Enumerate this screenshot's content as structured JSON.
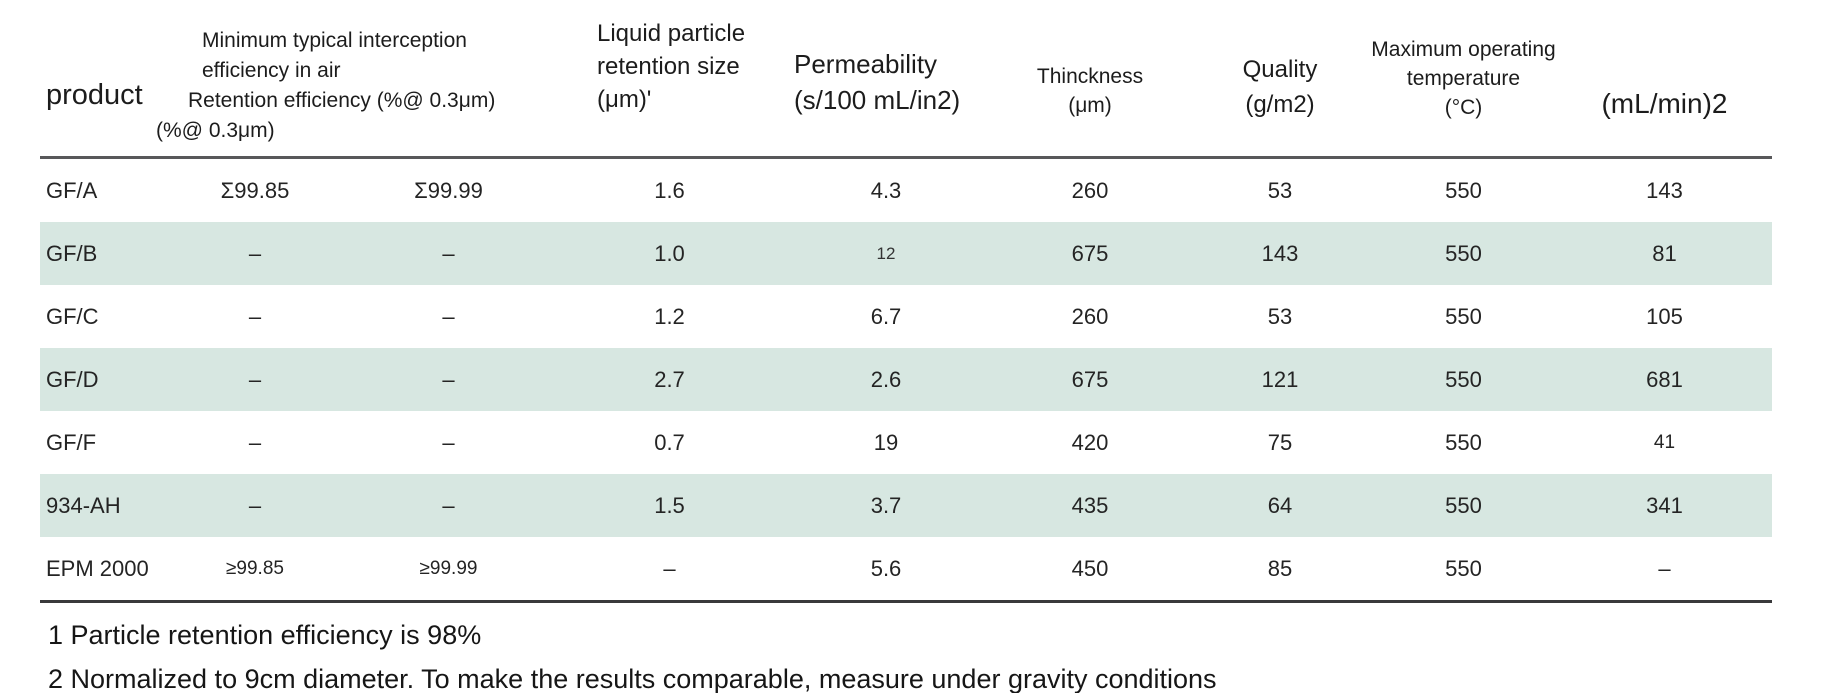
{
  "header": {
    "product": "product",
    "air_lines": [
      "Minimum typical interception",
      "efficiency in air",
      "Retention efficiency (%@ 0.3μm)",
      "(%@ 0.3μm)"
    ],
    "liquid_lines": [
      "Liquid particle",
      "retention size (μm)'"
    ],
    "permeability_lines": [
      "Permeability",
      "(s/100 mL/in2)"
    ],
    "thickness_lines": [
      "Thinckness",
      "(μm)"
    ],
    "quality_lines": [
      "Quality",
      "(g/m2)"
    ],
    "max_temp_lines": [
      "Maximum operating",
      "temperature",
      "(°C)"
    ],
    "flow": "(mL/min)2"
  },
  "rows": [
    {
      "striped": false,
      "cells": [
        "GF/A",
        "Σ99.85",
        "Σ99.99",
        "1.6",
        "4.3",
        "260",
        "53",
        "550",
        "143"
      ]
    },
    {
      "striped": true,
      "cells": [
        "GF/B",
        "–",
        "–",
        "1.0",
        "12",
        "675",
        "143",
        "550",
        "81"
      ]
    },
    {
      "striped": false,
      "cells": [
        "GF/C",
        "–",
        "–",
        "1.2",
        "6.7",
        "260",
        "53",
        "550",
        "105"
      ]
    },
    {
      "striped": true,
      "cells": [
        "GF/D",
        "–",
        "–",
        "2.7",
        "2.6",
        "675",
        "121",
        "550",
        "681"
      ]
    },
    {
      "striped": false,
      "cells": [
        "GF/F",
        "–",
        "–",
        "0.7",
        "19",
        "420",
        "75",
        "550",
        "41"
      ]
    },
    {
      "striped": true,
      "cells": [
        "934-AH",
        "–",
        "–",
        "1.5",
        "3.7",
        "435",
        "64",
        "550",
        "341"
      ]
    },
    {
      "striped": false,
      "cells": [
        "EPM 2000",
        "≥99.85",
        "≥99.99",
        "–",
        "5.6",
        "450",
        "85",
        "550",
        "–"
      ]
    }
  ],
  "footnotes": [
    "1 Particle retention efficiency is 98%",
    "2 Normalized to 9cm diameter. To make the results comparable, measure under gravity conditions"
  ],
  "colors": {
    "stripe": "#d7e7e1",
    "header_rule": "#58585a",
    "table_bottom_rule": "#39393b",
    "text": "#1f1f1f"
  }
}
